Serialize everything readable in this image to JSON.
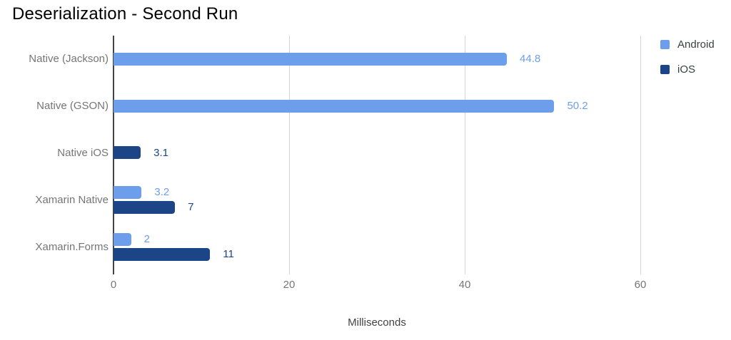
{
  "title": "Deserialization - Second Run",
  "chart_data": {
    "type": "bar",
    "orientation": "horizontal",
    "title": "Deserialization - Second Run",
    "xlabel": "Milliseconds",
    "ylabel": "",
    "categories": [
      "Native (Jackson)",
      "Native (GSON)",
      "Native iOS",
      "Xamarin Native",
      "Xamarin.Forms"
    ],
    "series": [
      {
        "name": "Android",
        "color": "#6d9eeb",
        "values": [
          44.8,
          50.2,
          null,
          3.2,
          2
        ]
      },
      {
        "name": "iOS",
        "color": "#1c4587",
        "values": [
          null,
          null,
          3.1,
          7,
          11
        ]
      }
    ],
    "xticks": [
      0,
      20,
      40,
      60
    ],
    "xlim": [
      0,
      60
    ],
    "grid": "vertical",
    "value_labels": true,
    "legend_position": "top-right"
  },
  "colors": {
    "android": "#6d9eeb",
    "ios": "#1c4587",
    "gridline": "#d6d6d6",
    "axis_line": "#424242",
    "category_text": "#757575",
    "tick_text": "#757575"
  }
}
